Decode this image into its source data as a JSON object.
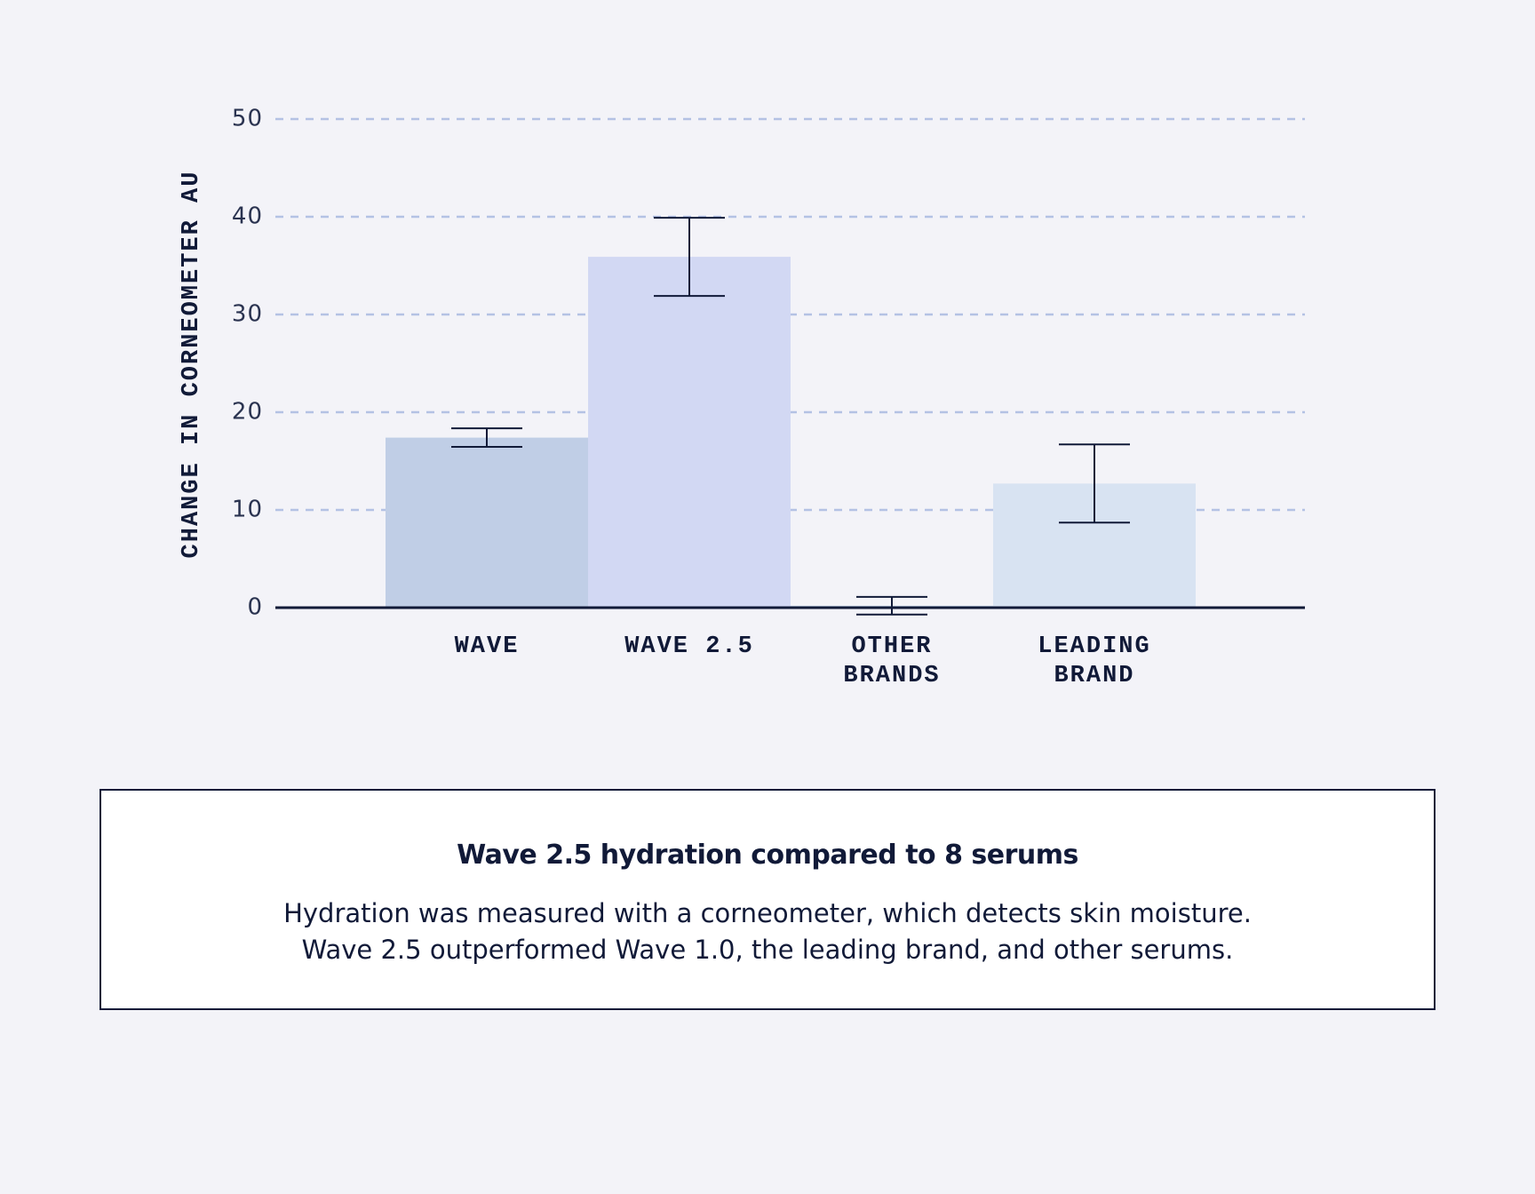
{
  "chart_data": {
    "type": "bar",
    "y_label": "CHANGE IN CORNEOMETER AU",
    "categories": [
      "WAVE",
      "WAVE 2.5",
      "OTHER BRANDS",
      "LEADING BRAND"
    ],
    "values": [
      17.4,
      35.9,
      0.2,
      12.7
    ],
    "errors": [
      0.95,
      4,
      0.9,
      4
    ],
    "colors": [
      "#c0cee6",
      "#d2d8f3",
      "#cddff2",
      "#d8e3f2"
    ],
    "ylim": [
      0,
      50
    ],
    "yticks": [
      0,
      10,
      20,
      30,
      40,
      50
    ],
    "grid": true
  },
  "caption": {
    "title": "Wave 2.5 hydration compared to 8 serums",
    "lines": [
      "Hydration was measured with a corneometer, which detects skin moisture.",
      "Wave 2.5 outperformed Wave 1.0, the leading brand, and other serums."
    ]
  }
}
